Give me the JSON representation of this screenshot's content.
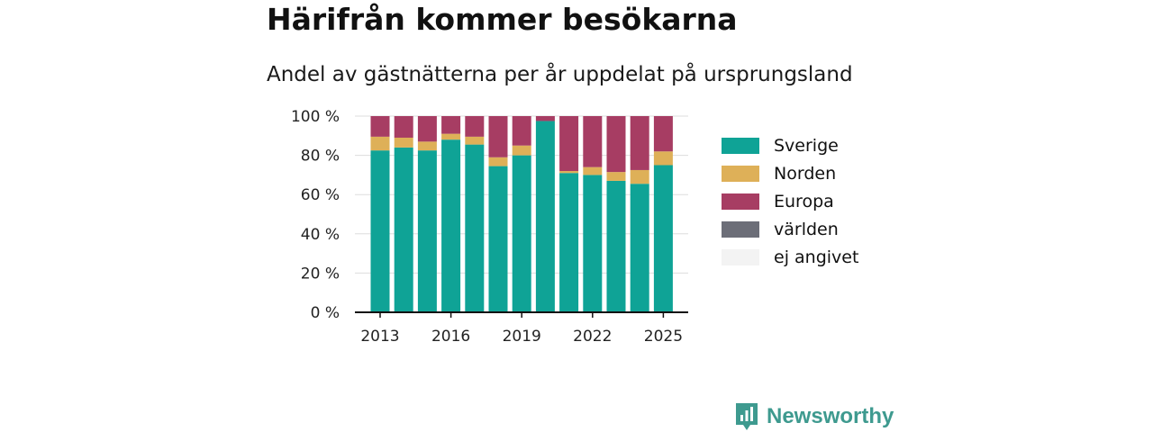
{
  "title": "Härifrån kommer besökarna",
  "subtitle": "Andel av gästnätterna per år uppdelat på ursprungsland",
  "brand": {
    "name": "Newsworthy",
    "icon": "newsworthy-bar-chart-logo"
  },
  "chart_data": {
    "type": "bar",
    "stacked": true,
    "categories": [
      "2013",
      "2014",
      "2015",
      "2016",
      "2017",
      "2018",
      "2019",
      "2020",
      "2021",
      "2022",
      "2023",
      "2024",
      "2025"
    ],
    "x_tick_labels": [
      "2013",
      "2016",
      "2019",
      "2022",
      "2025"
    ],
    "ylim": [
      0,
      100
    ],
    "y_ticks": [
      0,
      20,
      40,
      60,
      80,
      100
    ],
    "y_tick_labels": [
      "0 %",
      "20 %",
      "40 %",
      "60 %",
      "80 %",
      "100 %"
    ],
    "grid": "horizontal",
    "legend_position": "right",
    "series": [
      {
        "name": "Sverige",
        "color": "#0fa396",
        "values": [
          82.5,
          84,
          82.5,
          88,
          85.5,
          74.5,
          80,
          97.5,
          71,
          70,
          67,
          65.5,
          75
        ]
      },
      {
        "name": "Norden",
        "color": "#deb058",
        "values": [
          7,
          5,
          4.5,
          3,
          4,
          4.5,
          5,
          0,
          1,
          4,
          4.5,
          7,
          7
        ]
      },
      {
        "name": "Europa",
        "color": "#a73d63",
        "values": [
          10.5,
          11,
          13,
          9,
          10.5,
          21,
          15,
          2.5,
          28,
          26,
          28.5,
          27.5,
          18
        ]
      },
      {
        "name": "världen",
        "color": "#6c6e78",
        "values": [
          0,
          0,
          0,
          0,
          0,
          0,
          0,
          0,
          0,
          0,
          0,
          0,
          0
        ]
      },
      {
        "name": "ej angivet",
        "color": "#f3f3f3",
        "values": [
          0,
          0,
          0,
          0,
          0,
          0,
          0,
          0,
          0,
          0,
          0,
          0,
          0
        ]
      }
    ]
  }
}
